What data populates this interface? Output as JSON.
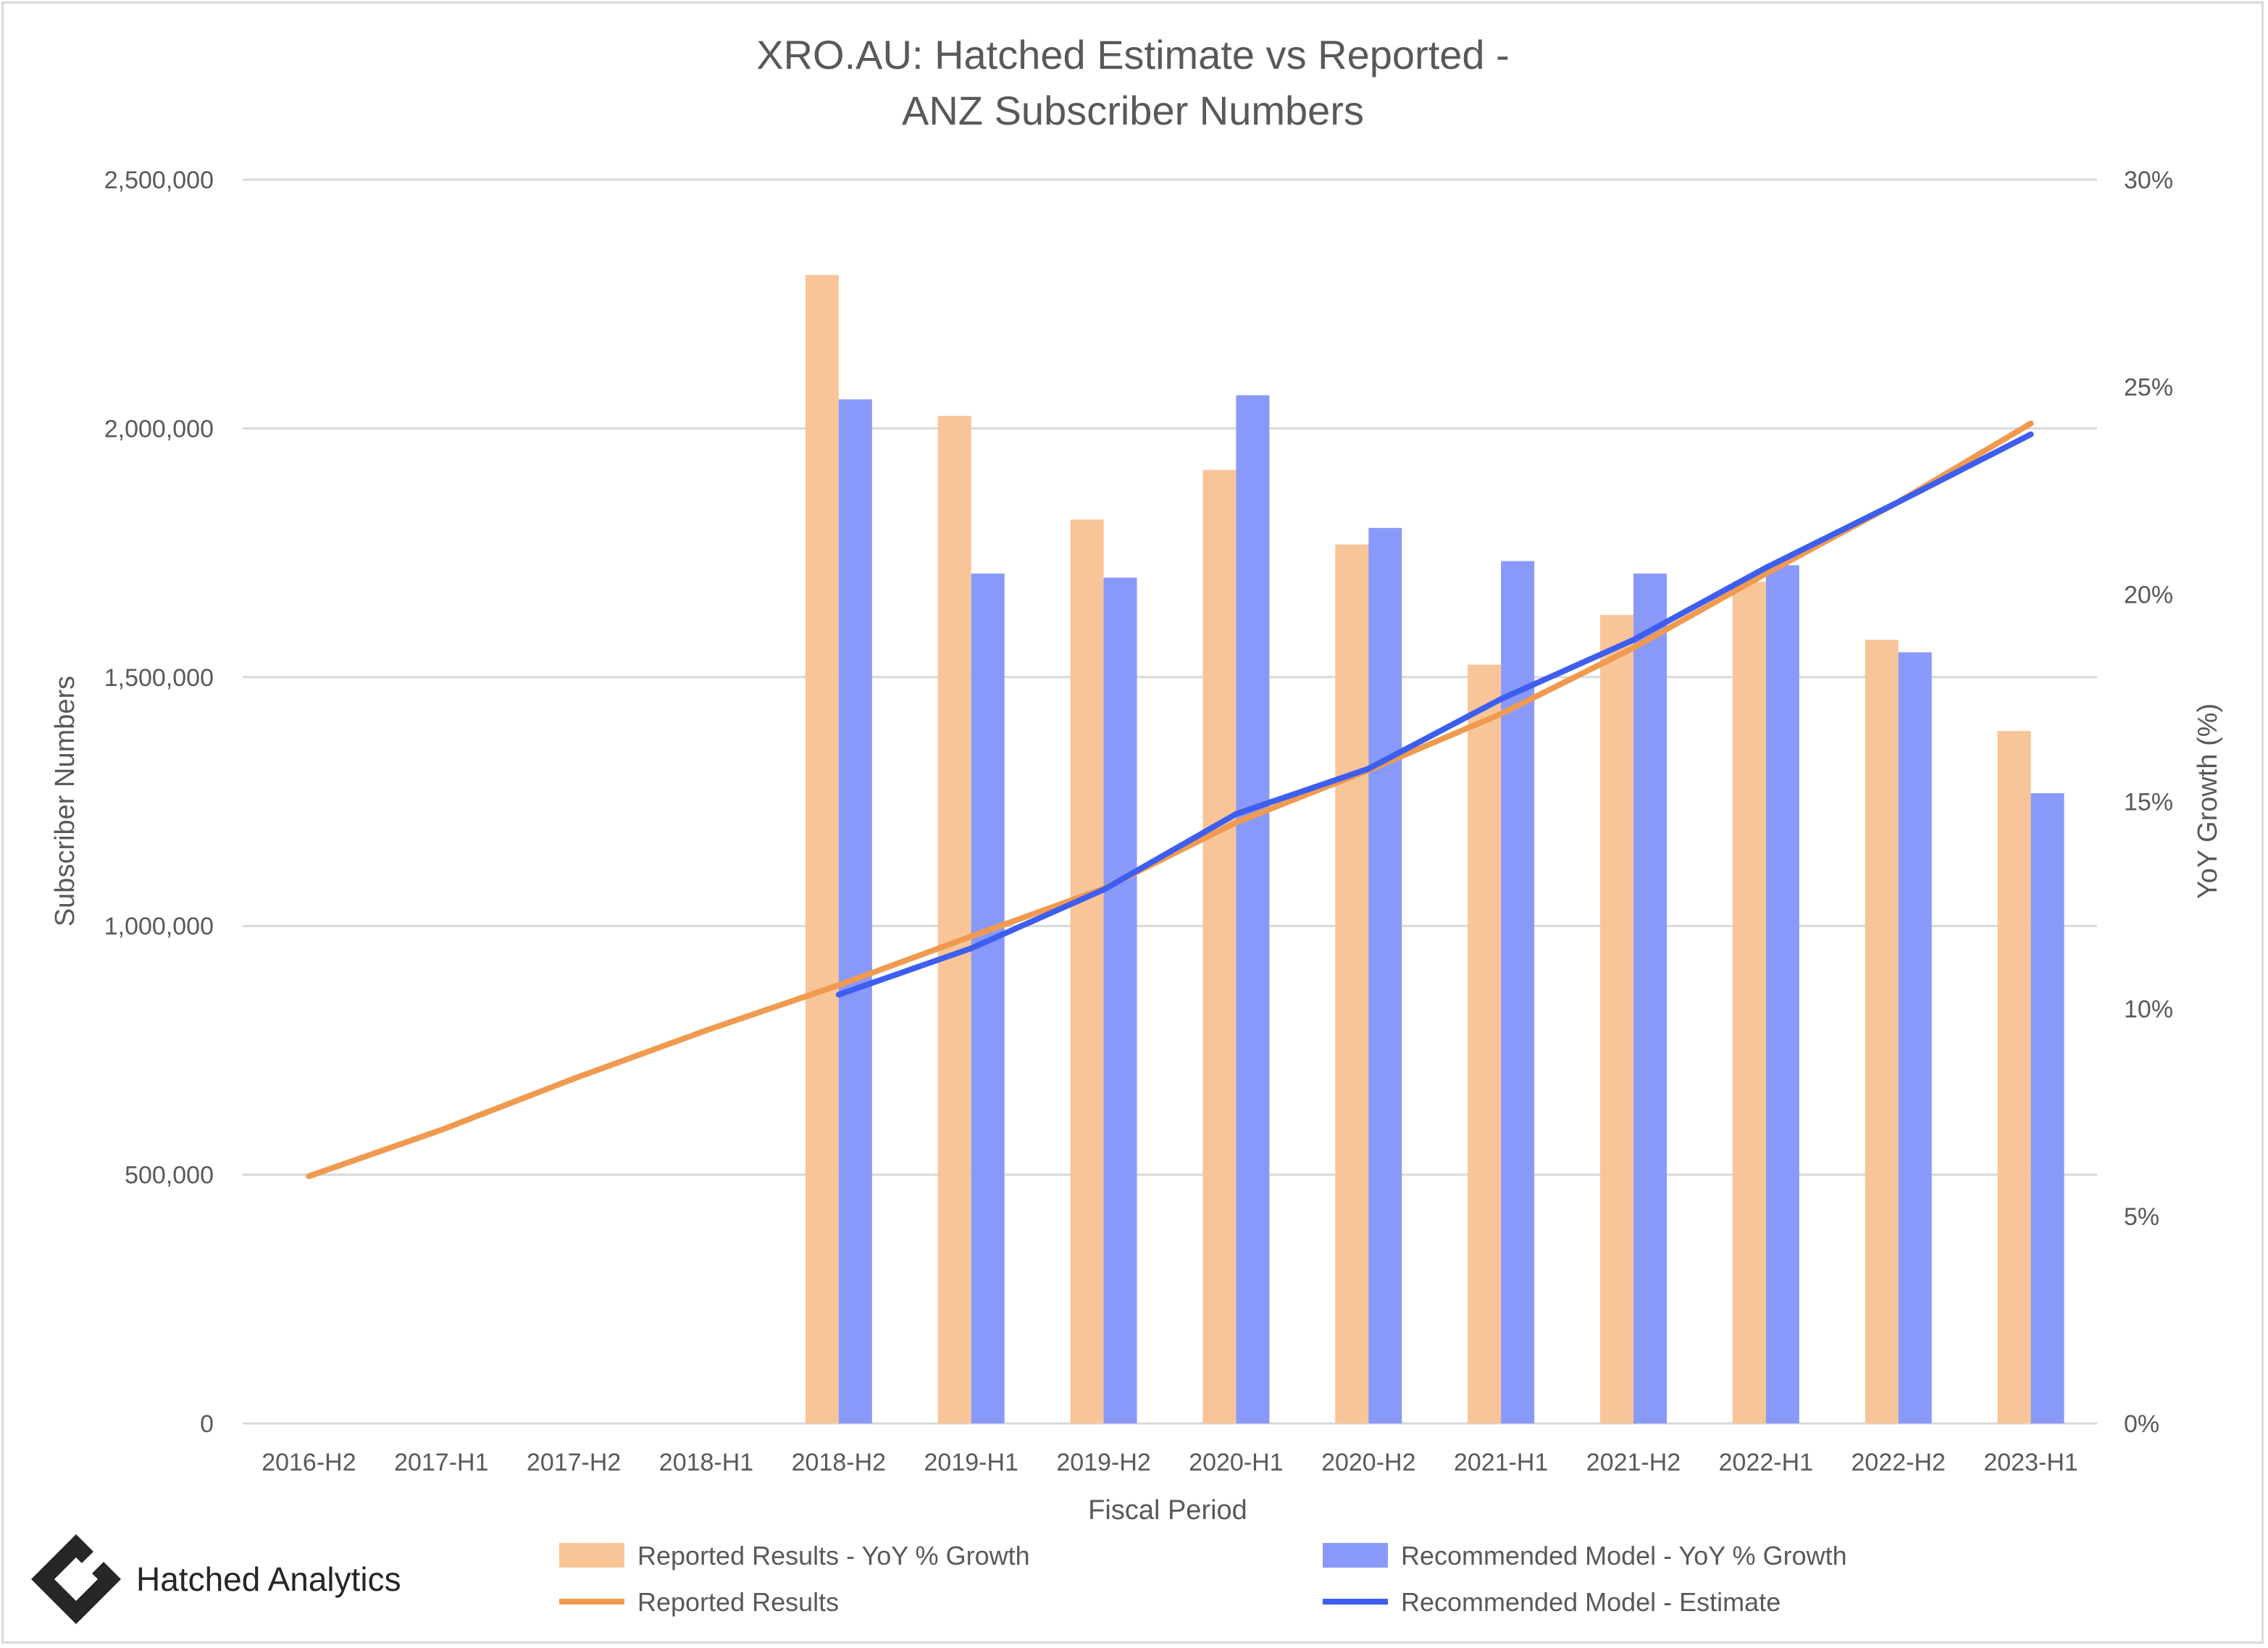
{
  "chart_data": {
    "type": "bar",
    "title": [
      "XRO.AU: Hatched Estimate vs Reported -",
      "ANZ Subscriber Numbers"
    ],
    "xlabel": "Fiscal Period",
    "ylabel": "Subscriber Numbers",
    "y2label": "YoY Growth (%)",
    "categories": [
      "2016-H2",
      "2017-H1",
      "2017-H2",
      "2018-H1",
      "2018-H2",
      "2019-H1",
      "2019-H2",
      "2020-H1",
      "2020-H2",
      "2021-H1",
      "2021-H2",
      "2022-H1",
      "2022-H2",
      "2023-H1"
    ],
    "ylim": [
      0,
      2500000
    ],
    "y_ticks": [
      0,
      500000,
      1000000,
      1500000,
      2000000,
      2500000
    ],
    "y_tick_labels": [
      "0",
      "500,000",
      "1,000,000",
      "1,500,000",
      "2,000,000",
      "2,500,000"
    ],
    "y2lim": [
      0,
      30
    ],
    "y2_ticks": [
      0,
      5,
      10,
      15,
      20,
      25,
      30
    ],
    "y2_tick_labels": [
      "0%",
      "5%",
      "10%",
      "15%",
      "20%",
      "25%",
      "30%"
    ],
    "grid": true,
    "legend_position": "bottom",
    "series": [
      {
        "name": "Reported Results - YoY % Growth",
        "kind": "bar",
        "axis": "right",
        "color": "#f8c598",
        "values": [
          null,
          null,
          null,
          null,
          27.7,
          24.3,
          21.8,
          23.0,
          21.2,
          18.3,
          19.5,
          20.3,
          18.9,
          16.7
        ]
      },
      {
        "name": "Recommended Model - YoY % Growth",
        "kind": "bar",
        "axis": "right",
        "color": "#8899fa",
        "values": [
          null,
          null,
          null,
          null,
          24.7,
          20.5,
          20.4,
          24.8,
          21.6,
          20.8,
          20.5,
          20.7,
          18.6,
          15.2
        ]
      },
      {
        "name": "Reported Results",
        "kind": "line",
        "axis": "left",
        "color": "#f09a50",
        "values": [
          497000,
          590000,
          693000,
          790000,
          881000,
          979000,
          1075000,
          1208000,
          1313000,
          1426000,
          1559000,
          1708000,
          1852000,
          2010000
        ]
      },
      {
        "name": "Recommended Model - Estimate",
        "kind": "line",
        "axis": "left",
        "color": "#3d5ef0",
        "values": [
          null,
          null,
          null,
          null,
          862000,
          955000,
          1073000,
          1225000,
          1316000,
          1456000,
          1575000,
          1720000,
          1852000,
          1988000
        ]
      }
    ]
  },
  "branding": {
    "logo_text": "Hatched Analytics",
    "logo_icon": "hatched-diamond-logo-icon"
  }
}
